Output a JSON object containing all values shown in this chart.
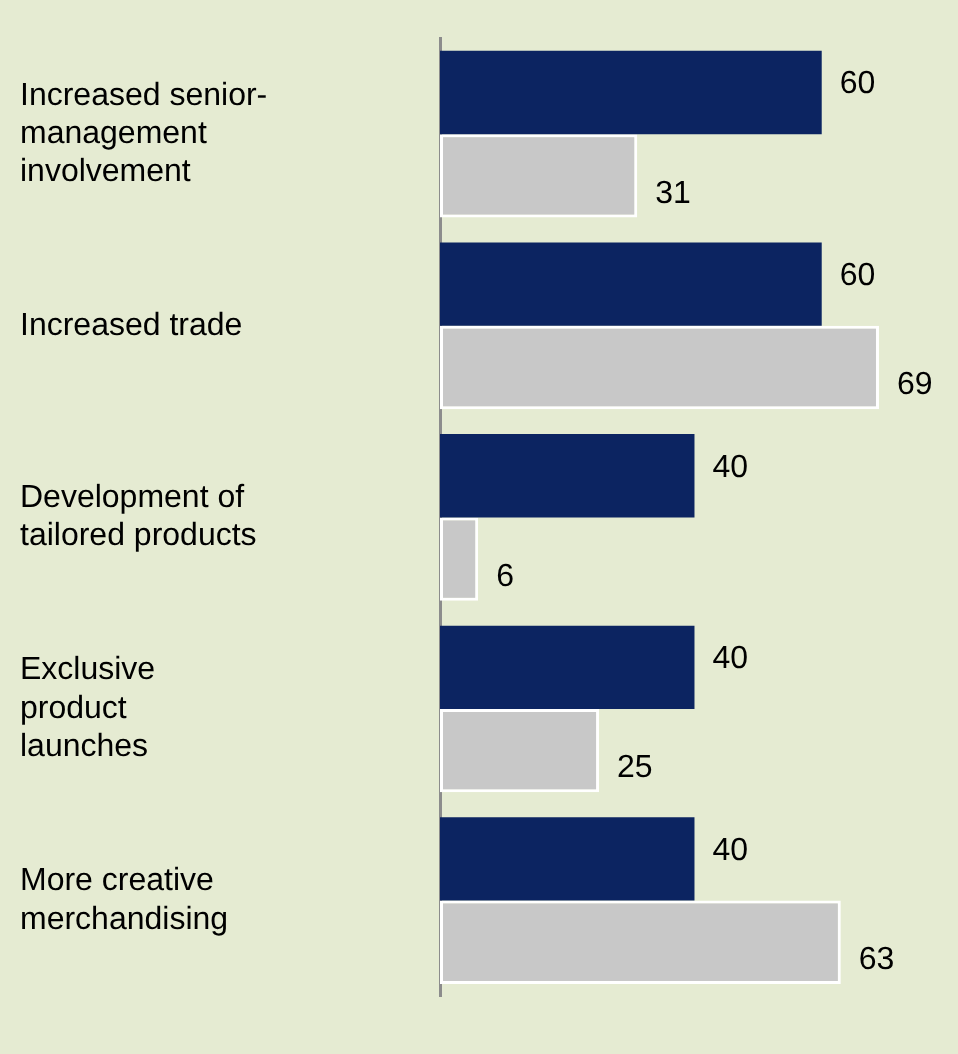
{
  "chart_data": {
    "type": "bar",
    "orientation": "horizontal",
    "categories": [
      "Increased senior-\nmanagement\ninvolvement",
      "Increased trade",
      "Development of\ntailored products",
      "Exclusive\nproduct\nlaunches",
      "More creative\nmerchandising"
    ],
    "series": [
      {
        "color": "#0c2461",
        "values": [
          60,
          60,
          40,
          40,
          40
        ]
      },
      {
        "color": "#c8c8c8",
        "values": [
          31,
          69,
          6,
          25,
          63
        ]
      }
    ],
    "data_labels": true
  }
}
